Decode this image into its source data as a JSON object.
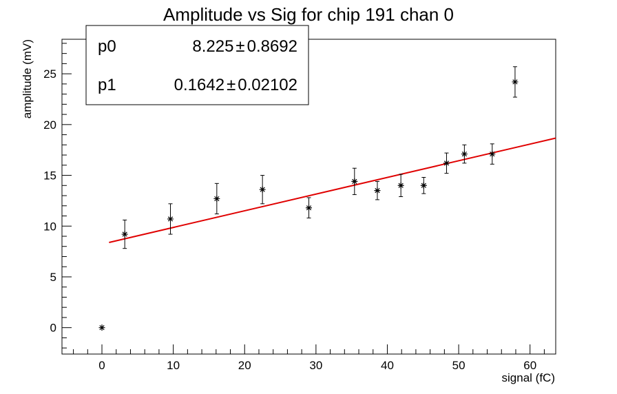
{
  "chart_data": {
    "type": "scatter",
    "title": "Amplitude vs Sig for chip 191 chan 0",
    "xlabel": "signal (fC)",
    "ylabel": "amplitude (mV)",
    "xlim": [
      -5.6,
      63.6
    ],
    "ylim": [
      -2.6,
      28.4
    ],
    "xticks": [
      "0",
      "10",
      "20",
      "30",
      "40",
      "50",
      "60"
    ],
    "yticks": [
      "0",
      "5",
      "10",
      "15",
      "20",
      "25"
    ],
    "grid": false,
    "points": [
      {
        "x": 0,
        "y": 0,
        "err": 0
      },
      {
        "x": 3.2,
        "y": 9.2,
        "err": 1.4
      },
      {
        "x": 9.6,
        "y": 10.7,
        "err": 1.5
      },
      {
        "x": 16.1,
        "y": 12.7,
        "err": 1.5
      },
      {
        "x": 22.5,
        "y": 13.6,
        "err": 1.4
      },
      {
        "x": 29.0,
        "y": 11.8,
        "err": 1.0
      },
      {
        "x": 35.4,
        "y": 14.4,
        "err": 1.3
      },
      {
        "x": 38.6,
        "y": 13.5,
        "err": 0.9
      },
      {
        "x": 41.9,
        "y": 14.0,
        "err": 1.1
      },
      {
        "x": 45.1,
        "y": 14.0,
        "err": 0.8
      },
      {
        "x": 48.3,
        "y": 16.2,
        "err": 1.0
      },
      {
        "x": 50.8,
        "y": 17.1,
        "err": 0.9
      },
      {
        "x": 54.7,
        "y": 17.1,
        "err": 1.0
      },
      {
        "x": 57.9,
        "y": 24.2,
        "err": 1.5
      }
    ],
    "fit": {
      "x_range": [
        1.0,
        63.6
      ],
      "p0": 8.225,
      "p1": 0.1642,
      "color": "#e00000"
    },
    "stats_box": {
      "placement": "top-left",
      "rows": [
        {
          "name": "p0",
          "value": "8.225",
          "pm": "±",
          "error": "0.8692"
        },
        {
          "name": "p1",
          "value": "0.1642",
          "pm": "±",
          "error": "0.02102"
        }
      ]
    }
  }
}
